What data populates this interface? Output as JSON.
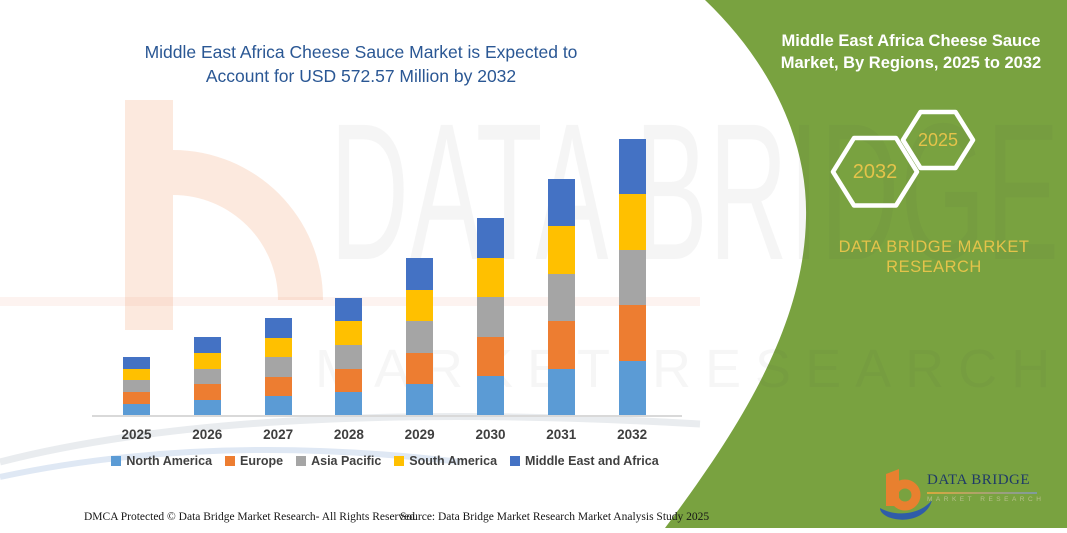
{
  "header": {
    "title_line1": "Middle East Africa Cheese Sauce Market is Expected to",
    "title_line2": "Account for USD 572.57 Million by 2032",
    "title_color": "#2a5794"
  },
  "chart_data": {
    "type": "bar",
    "stacked": true,
    "unit": "USD Million",
    "title": "Middle East Africa Cheese Sauce Market is Expected to Account for USD 572.57 Million by 2032",
    "categories": [
      "2025",
      "2026",
      "2027",
      "2028",
      "2029",
      "2030",
      "2031",
      "2032"
    ],
    "series": [
      {
        "name": "North America",
        "color": "#5B9BD5",
        "values": [
          24.5,
          32.7,
          40.5,
          48.9,
          65.3,
          81.7,
          98.0,
          114.5
        ]
      },
      {
        "name": "Europe",
        "color": "#ED7D31",
        "values": [
          24.5,
          32.7,
          40.5,
          48.9,
          65.3,
          81.7,
          98.0,
          114.5
        ]
      },
      {
        "name": "Asia Pacific",
        "color": "#A5A5A5",
        "values": [
          24.5,
          32.7,
          40.5,
          48.9,
          65.3,
          81.7,
          98.0,
          114.5
        ]
      },
      {
        "name": "South America",
        "color": "#FFC000",
        "values": [
          24.5,
          32.7,
          40.5,
          48.9,
          65.3,
          81.7,
          98.0,
          114.5
        ]
      },
      {
        "name": "Middle East and Africa",
        "color": "#4472C4",
        "values": [
          24.5,
          32.7,
          40.5,
          48.9,
          65.3,
          81.7,
          98.0,
          114.5
        ]
      }
    ],
    "totals_estimated": [
      122.5,
      163.5,
      202.5,
      244.5,
      326.5,
      408.5,
      490.0,
      572.57
    ],
    "ylim": [
      0,
      600
    ],
    "y_axis_visible": false,
    "grid": false,
    "legend_position": "bottom"
  },
  "right_panel": {
    "title_line1": "Middle East Africa Cheese Sauce",
    "title_line2": "Market, By Regions, 2025 to 2032",
    "hexagons": [
      {
        "label": "2032"
      },
      {
        "label": "2025"
      }
    ],
    "brand_line1": "DATA BRIDGE MARKET",
    "brand_line2": "RESEARCH",
    "colors": {
      "panel_green": "#79a240",
      "accent_gold": "#e4c34a"
    }
  },
  "watermark": {
    "line1": "DATA BRIDGE",
    "line2": "MARKET RESEARCH"
  },
  "logo": {
    "brand": "DATA BRIDGE",
    "subtext": "MARKET RESEARCH"
  },
  "footer": {
    "left": "DMCA Protected © Data Bridge Market Research- All Rights Reserved.",
    "right": "Source: Data Bridge Market Research Market Analysis Study 2025"
  }
}
